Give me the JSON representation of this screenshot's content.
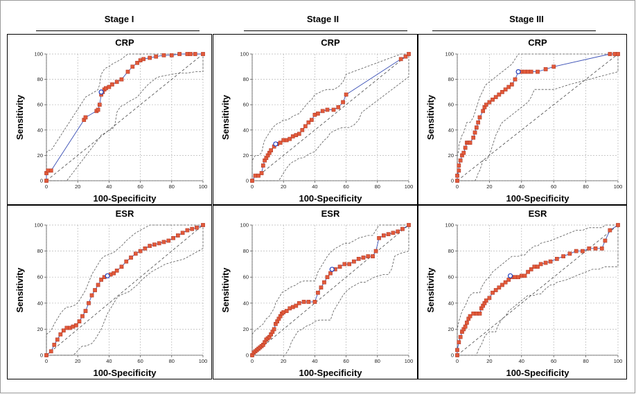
{
  "stages": [
    "Stage I",
    "Stage II",
    "Stage III"
  ],
  "chart_data": [
    {
      "type": "line",
      "stage": "Stage I",
      "title": "CRP",
      "xlabel": "100-Specificity",
      "ylabel": "Sensitivity",
      "xlim": [
        0,
        100
      ],
      "ylim": [
        0,
        100
      ],
      "ticks": [
        0,
        20,
        40,
        60,
        80,
        100
      ],
      "grid": true,
      "series": [
        {
          "x": [
            0,
            0,
            1,
            3,
            24,
            25,
            32,
            33,
            34,
            35,
            36,
            37,
            38,
            40,
            42,
            45,
            48,
            52,
            55,
            58,
            60,
            62,
            66,
            70,
            75,
            80,
            85,
            90,
            92,
            95,
            100
          ],
          "y": [
            0,
            6,
            8,
            8,
            48,
            50,
            55,
            56,
            60,
            68,
            70,
            72,
            73,
            74,
            76,
            78,
            80,
            86,
            90,
            93,
            95,
            96,
            97,
            98,
            99,
            99,
            100,
            100,
            100,
            100,
            100
          ]
        }
      ],
      "cutoff": [
        35,
        70
      ]
    },
    {
      "type": "line",
      "stage": "Stage II",
      "title": "CRP",
      "xlabel": "100-Specificity",
      "ylabel": "Sensitivity",
      "xlim": [
        0,
        100
      ],
      "ylim": [
        0,
        100
      ],
      "ticks": [
        0,
        20,
        40,
        60,
        80,
        100
      ],
      "grid": true,
      "series": [
        {
          "x": [
            0,
            2,
            4,
            6,
            7,
            8,
            9,
            10,
            11,
            12,
            14,
            16,
            18,
            20,
            22,
            24,
            26,
            28,
            30,
            32,
            34,
            36,
            38,
            40,
            42,
            45,
            48,
            52,
            55,
            58,
            60,
            95,
            98,
            100
          ],
          "y": [
            0,
            4,
            4,
            6,
            12,
            16,
            18,
            20,
            22,
            24,
            27,
            29,
            30,
            32,
            32,
            33,
            35,
            36,
            37,
            40,
            43,
            46,
            48,
            52,
            53,
            55,
            56,
            56,
            58,
            62,
            68,
            96,
            98,
            100
          ]
        }
      ],
      "cutoff": [
        15,
        29
      ]
    },
    {
      "type": "line",
      "stage": "Stage III",
      "title": "CRP",
      "xlabel": "100-Specificity",
      "ylabel": "Sensitivity",
      "xlim": [
        0,
        100
      ],
      "ylim": [
        0,
        100
      ],
      "ticks": [
        0,
        20,
        40,
        60,
        80,
        100
      ],
      "grid": true,
      "series": [
        {
          "x": [
            0,
            0,
            1,
            1,
            2,
            3,
            4,
            5,
            6,
            7,
            8,
            10,
            11,
            12,
            13,
            14,
            16,
            17,
            18,
            20,
            22,
            24,
            26,
            28,
            30,
            32,
            34,
            36,
            38,
            40,
            42,
            44,
            46,
            50,
            55,
            60,
            95,
            98,
            100
          ],
          "y": [
            0,
            4,
            8,
            12,
            16,
            20,
            22,
            26,
            30,
            30,
            30,
            34,
            38,
            42,
            46,
            50,
            55,
            58,
            60,
            62,
            64,
            66,
            68,
            70,
            72,
            74,
            76,
            80,
            86,
            86,
            86,
            86,
            86,
            86,
            88,
            90,
            100,
            100,
            100
          ]
        }
      ],
      "cutoff": [
        38,
        86
      ]
    },
    {
      "type": "line",
      "stage": "Stage I",
      "title": "ESR",
      "xlabel": "100-Specificity",
      "ylabel": "Sensitivity",
      "xlim": [
        0,
        100
      ],
      "ylim": [
        0,
        100
      ],
      "ticks": [
        0,
        20,
        40,
        60,
        80,
        100
      ],
      "grid": true,
      "series": [
        {
          "x": [
            0,
            3,
            5,
            7,
            9,
            11,
            13,
            15,
            17,
            19,
            21,
            23,
            25,
            27,
            29,
            31,
            33,
            35,
            37,
            39,
            41,
            43,
            45,
            48,
            51,
            54,
            57,
            60,
            63,
            66,
            69,
            72,
            75,
            78,
            81,
            84,
            87,
            90,
            93,
            96,
            100
          ],
          "y": [
            0,
            3,
            8,
            12,
            16,
            19,
            21,
            21,
            22,
            23,
            26,
            30,
            34,
            40,
            46,
            50,
            54,
            58,
            60,
            61,
            62,
            63,
            65,
            68,
            72,
            75,
            78,
            80,
            82,
            84,
            85,
            86,
            87,
            88,
            90,
            92,
            94,
            96,
            97,
            98,
            100
          ]
        }
      ],
      "cutoff": [
        39,
        61
      ]
    },
    {
      "type": "line",
      "stage": "Stage II",
      "title": "ESR",
      "xlabel": "100-Specificity",
      "ylabel": "Sensitivity",
      "xlim": [
        0,
        100
      ],
      "ylim": [
        0,
        100
      ],
      "ticks": [
        0,
        20,
        40,
        60,
        80,
        100
      ],
      "grid": true,
      "series": [
        {
          "x": [
            0,
            1,
            2,
            3,
            4,
            5,
            6,
            7,
            8,
            9,
            10,
            11,
            12,
            13,
            14,
            15,
            16,
            17,
            18,
            19,
            20,
            22,
            24,
            26,
            28,
            30,
            33,
            36,
            40,
            42,
            44,
            46,
            48,
            50,
            53,
            56,
            59,
            62,
            65,
            68,
            71,
            74,
            77,
            79,
            81,
            84,
            87,
            90,
            93,
            96,
            100
          ],
          "y": [
            0,
            2,
            3,
            4,
            5,
            6,
            7,
            8,
            10,
            12,
            13,
            14,
            16,
            18,
            20,
            24,
            26,
            28,
            30,
            32,
            33,
            34,
            36,
            37,
            38,
            40,
            41,
            41,
            41,
            48,
            52,
            56,
            60,
            63,
            66,
            68,
            70,
            70,
            72,
            74,
            75,
            76,
            76,
            80,
            90,
            92,
            93,
            94,
            95,
            97,
            100
          ]
        }
      ],
      "cutoff": [
        51,
        66
      ]
    },
    {
      "type": "line",
      "stage": "Stage III",
      "title": "ESR",
      "xlabel": "100-Specificity",
      "ylabel": "Sensitivity",
      "xlim": [
        0,
        100
      ],
      "ylim": [
        0,
        100
      ],
      "ticks": [
        0,
        20,
        40,
        60,
        80,
        100
      ],
      "grid": true,
      "series": [
        {
          "x": [
            0,
            0,
            1,
            2,
            3,
            4,
            5,
            6,
            7,
            8,
            10,
            12,
            14,
            15,
            16,
            17,
            18,
            20,
            22,
            24,
            26,
            28,
            30,
            32,
            34,
            36,
            38,
            40,
            42,
            44,
            46,
            48,
            50,
            52,
            55,
            58,
            62,
            66,
            70,
            74,
            78,
            82,
            86,
            90,
            92,
            95,
            100
          ],
          "y": [
            0,
            4,
            10,
            14,
            18,
            20,
            22,
            25,
            28,
            30,
            32,
            32,
            32,
            36,
            38,
            40,
            42,
            44,
            48,
            50,
            52,
            54,
            56,
            58,
            60,
            60,
            60,
            61,
            61,
            64,
            66,
            68,
            68,
            70,
            71,
            72,
            74,
            76,
            78,
            80,
            80,
            82,
            82,
            82,
            88,
            96,
            100
          ]
        }
      ],
      "cutoff": [
        33,
        61
      ]
    }
  ]
}
